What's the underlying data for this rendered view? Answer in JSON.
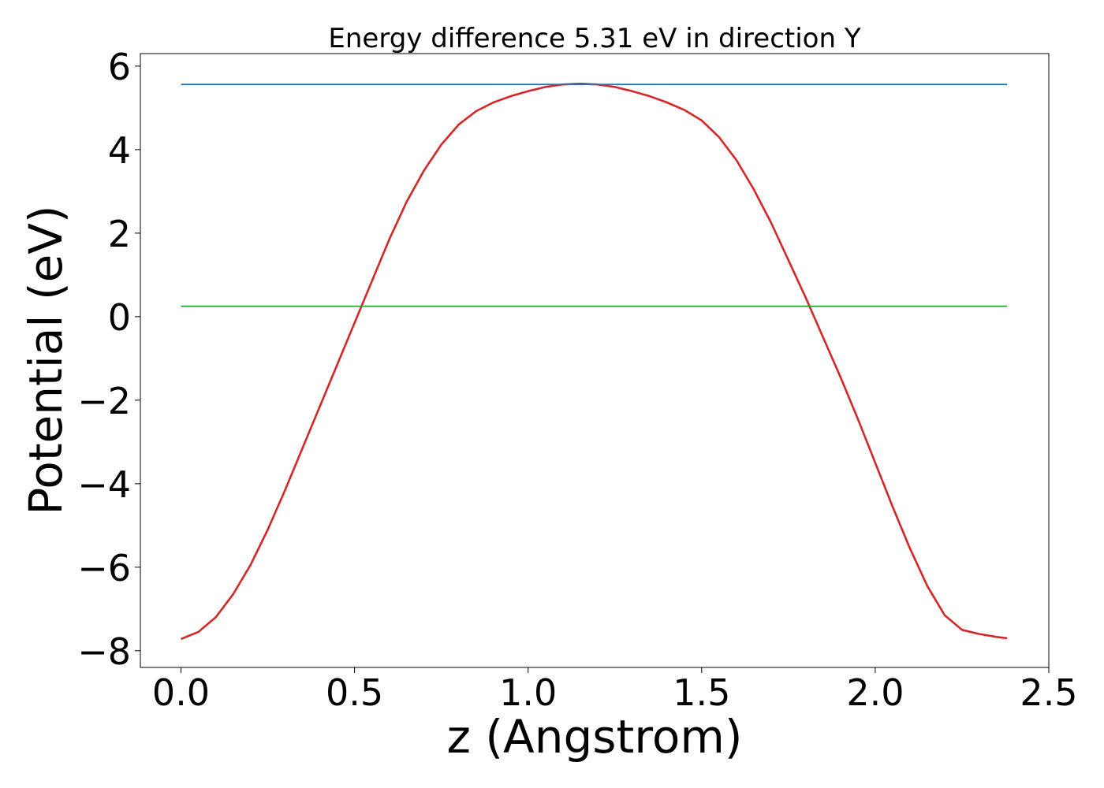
{
  "chart_data": {
    "type": "line",
    "title": "Energy difference 5.31 eV in direction Y",
    "xlabel": "z (Angstrom)",
    "ylabel": "Potential (eV)",
    "xlim": [
      -0.117,
      2.5
    ],
    "ylim": [
      -8.4,
      6.3
    ],
    "grid": false,
    "xticks": [
      0.0,
      0.5,
      1.0,
      1.5,
      2.0,
      2.5
    ],
    "xtick_labels": [
      "0.0",
      "0.5",
      "1.0",
      "1.5",
      "2.0",
      "2.5"
    ],
    "yticks": [
      -8,
      -6,
      -4,
      -2,
      0,
      2,
      4,
      6
    ],
    "ytick_labels": [
      "−8",
      "−6",
      "−4",
      "−2",
      "0",
      "2",
      "4",
      "6"
    ],
    "series": [
      {
        "color": "#d62728",
        "x": [
          0.0,
          0.05,
          0.1,
          0.15,
          0.2,
          0.25,
          0.3,
          0.35,
          0.4,
          0.45,
          0.5,
          0.55,
          0.6,
          0.65,
          0.7,
          0.75,
          0.8,
          0.85,
          0.9,
          0.95,
          1.0,
          1.05,
          1.1,
          1.15,
          1.2,
          1.25,
          1.3,
          1.35,
          1.4,
          1.45,
          1.5,
          1.55,
          1.6,
          1.65,
          1.7,
          1.75,
          1.8,
          1.85,
          1.9,
          1.95,
          2.0,
          2.05,
          2.1,
          2.15,
          2.2,
          2.25,
          2.3,
          2.35,
          2.38
        ],
        "values": [
          -7.72,
          -7.55,
          -7.2,
          -6.65,
          -5.95,
          -5.1,
          -4.15,
          -3.15,
          -2.15,
          -1.15,
          -0.15,
          0.85,
          1.85,
          2.75,
          3.5,
          4.12,
          4.6,
          4.92,
          5.13,
          5.28,
          5.4,
          5.5,
          5.56,
          5.58,
          5.56,
          5.5,
          5.4,
          5.28,
          5.13,
          4.95,
          4.7,
          4.3,
          3.75,
          3.05,
          2.25,
          1.35,
          0.45,
          -0.5,
          -1.45,
          -2.45,
          -3.5,
          -4.55,
          -5.55,
          -6.45,
          -7.15,
          -7.5,
          -7.6,
          -7.67,
          -7.7
        ]
      },
      {
        "color": "#1f77b4",
        "x": [
          0.0,
          2.38
        ],
        "values": [
          5.56,
          5.56
        ]
      },
      {
        "color": "#2ca02c",
        "x": [
          0.0,
          2.38
        ],
        "values": [
          0.25,
          0.25
        ]
      }
    ]
  }
}
